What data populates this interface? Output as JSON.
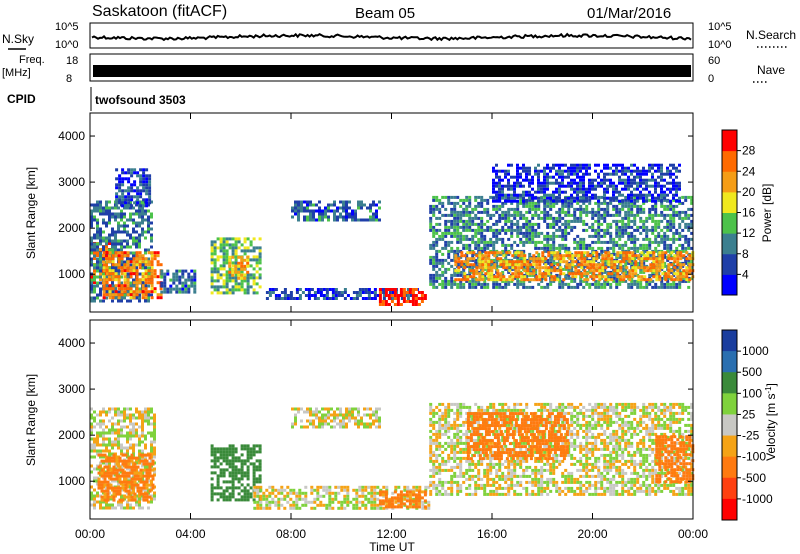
{
  "header": {
    "station": "Saskatoon (fitACF)",
    "beam": "Beam 05",
    "date": "01/Mar/2016"
  },
  "top_panels": {
    "nsky_label": "N.Sky",
    "nsearch_label": "N.Search",
    "noise_ticks_left": [
      "10^5",
      "10^0"
    ],
    "noise_ticks_right": [
      "10^5",
      "10^0"
    ],
    "freq_label_line1": "Freq.",
    "freq_label_line2": "[MHz]",
    "freq_ticks": [
      "18",
      "8"
    ],
    "nave_label": "Nave",
    "nave_ticks": [
      "60",
      "0"
    ],
    "cpid_label": "CPID",
    "cpid_value": "twofsound 3503"
  },
  "colors": {
    "power": [
      "#0000ff",
      "#1f3fa8",
      "#3b7f8f",
      "#4cc24a",
      "#f0e81e",
      "#f59d16",
      "#ff6a00",
      "#ff0000"
    ],
    "velocity": [
      "#1a3d9e",
      "#2a6fb0",
      "#3a8a3a",
      "#7fd23c",
      "#c8c8c4",
      "#f5a316",
      "#ff7a10",
      "#ff4010",
      "#ff0000"
    ]
  },
  "chart_data": [
    {
      "type": "heatmap",
      "quantity": "Power",
      "ylabel": "Slant Range [km]",
      "ylim": [
        180,
        4500
      ],
      "yticks": [
        "1000",
        "2000",
        "3000",
        "4000"
      ],
      "xlim": [
        0,
        24
      ],
      "xticks": [
        "00:00",
        "04:00",
        "08:00",
        "12:00",
        "16:00",
        "20:00",
        "00:00"
      ],
      "colorbar_label": "Power [dB]",
      "colorbar_ticks": [
        "4",
        "8",
        "12",
        "16",
        "20",
        "24",
        "28"
      ],
      "colorbar_range": [
        0,
        32
      ],
      "regions": [
        {
          "t0": 0.0,
          "t1": 0.9,
          "r0": 800,
          "r1": 1700,
          "level": 26
        },
        {
          "t0": 0.0,
          "t1": 2.5,
          "r0": 400,
          "r1": 2600,
          "level": 9
        },
        {
          "t0": 0.5,
          "t1": 2.8,
          "r0": 500,
          "r1": 1500,
          "level": 24
        },
        {
          "t0": 1.0,
          "t1": 2.4,
          "r0": 2500,
          "r1": 3300,
          "level": 6
        },
        {
          "t0": 2.8,
          "t1": 4.2,
          "r0": 600,
          "r1": 1100,
          "level": 8
        },
        {
          "t0": 4.8,
          "t1": 6.8,
          "r0": 600,
          "r1": 1800,
          "level": 14
        },
        {
          "t0": 5.5,
          "t1": 6.3,
          "r0": 900,
          "r1": 1400,
          "level": 22
        },
        {
          "t0": 7.0,
          "t1": 13.0,
          "r0": 500,
          "r1": 700,
          "level": 6
        },
        {
          "t0": 8.0,
          "t1": 11.5,
          "r0": 2200,
          "r1": 2600,
          "level": 8
        },
        {
          "t0": 11.5,
          "t1": 13.3,
          "r0": 350,
          "r1": 700,
          "level": 30
        },
        {
          "t0": 13.5,
          "t1": 24.0,
          "r0": 700,
          "r1": 2700,
          "level": 10
        },
        {
          "t0": 14.5,
          "t1": 24.0,
          "r0": 900,
          "r1": 1500,
          "level": 23
        },
        {
          "t0": 16.0,
          "t1": 23.5,
          "r0": 2600,
          "r1": 3400,
          "level": 5
        }
      ]
    },
    {
      "type": "heatmap",
      "quantity": "Velocity",
      "ylabel": "Slant Range [km]",
      "ylim": [
        180,
        4500
      ],
      "yticks": [
        "1000",
        "2000",
        "3000",
        "4000"
      ],
      "xlim": [
        0,
        24
      ],
      "xticks": [
        "00:00",
        "04:00",
        "08:00",
        "12:00",
        "16:00",
        "20:00",
        "00:00"
      ],
      "xlabel": "Time UT",
      "colorbar_label": "Velocity [m s",
      "colorbar_unit_exp": "-1",
      "colorbar_label_close": "]",
      "colorbar_ticks": [
        "1000",
        "500",
        "100",
        "25",
        "-25",
        "-100",
        "-500",
        "-1000"
      ],
      "regions": [
        {
          "t0": 0.0,
          "t1": 2.6,
          "r0": 400,
          "r1": 2600,
          "vel": 0
        },
        {
          "t0": 0.3,
          "t1": 2.5,
          "r0": 600,
          "r1": 1600,
          "vel": -150
        },
        {
          "t0": 4.8,
          "t1": 6.8,
          "r0": 600,
          "r1": 1800,
          "vel": 200
        },
        {
          "t0": 6.5,
          "t1": 13.5,
          "r0": 400,
          "r1": 900,
          "vel": 0
        },
        {
          "t0": 8.0,
          "t1": 11.5,
          "r0": 2200,
          "r1": 2600,
          "vel": 0
        },
        {
          "t0": 11.5,
          "t1": 13.3,
          "r0": 450,
          "r1": 800,
          "vel": -150
        },
        {
          "t0": 13.5,
          "t1": 24.0,
          "r0": 700,
          "r1": 2700,
          "vel": 0
        },
        {
          "t0": 15.0,
          "t1": 19.0,
          "r0": 1500,
          "r1": 2500,
          "vel": -200
        },
        {
          "t0": 22.5,
          "t1": 24.0,
          "r0": 1000,
          "r1": 2000,
          "vel": -200
        }
      ]
    }
  ]
}
